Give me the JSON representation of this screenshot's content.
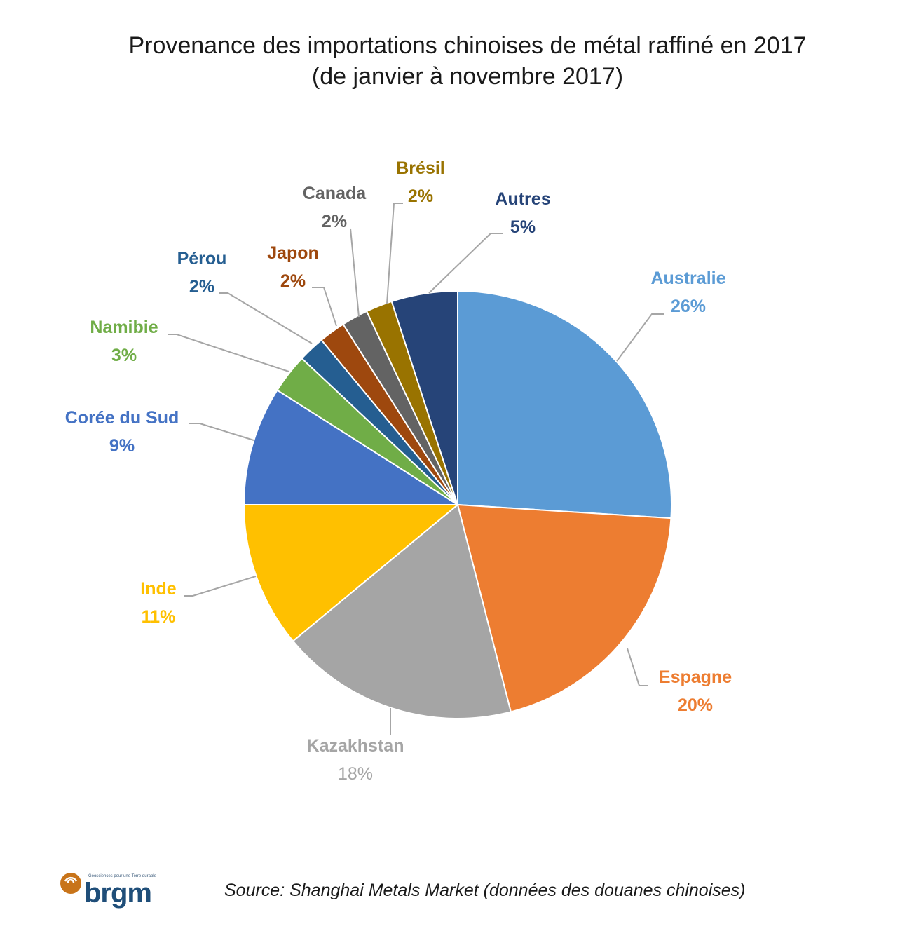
{
  "chart_data": {
    "type": "pie",
    "title": "Provenance des importations chinoises de métal raffiné en 2017",
    "subtitle": "(de janvier à novembre 2017)",
    "start": "top",
    "direction": "clockwise",
    "slices": [
      {
        "label": "Australie",
        "value": 26,
        "pct_label": "26%",
        "color": "#5b9bd5"
      },
      {
        "label": "Espagne",
        "value": 20,
        "pct_label": "20%",
        "color": "#ed7d31"
      },
      {
        "label": "Kazakhstan",
        "value": 18,
        "pct_label": "18%",
        "color": "#a5a5a5"
      },
      {
        "label": "Inde",
        "value": 11,
        "pct_label": "11%",
        "color": "#ffc000"
      },
      {
        "label": "Corée du Sud",
        "value": 9,
        "pct_label": "9%",
        "color": "#4472c4"
      },
      {
        "label": "Namibie",
        "value": 3,
        "pct_label": "3%",
        "color": "#70ad47"
      },
      {
        "label": "Pérou",
        "value": 2,
        "pct_label": "2%",
        "color": "#255e91"
      },
      {
        "label": "Japon",
        "value": 2,
        "pct_label": "2%",
        "color": "#9e480e"
      },
      {
        "label": "Canada",
        "value": 2,
        "pct_label": "2%",
        "color": "#636363"
      },
      {
        "label": "Brésil",
        "value": 2,
        "pct_label": "2%",
        "color": "#997300"
      },
      {
        "label": "Autres",
        "value": 5,
        "pct_label": "5%",
        "color": "#264478"
      }
    ]
  },
  "source": "Source: Shanghai Metals Market (données des douanes chinoises)",
  "logo": {
    "word": "brgm",
    "tagline": "Géosciences pour une Terre durable"
  }
}
